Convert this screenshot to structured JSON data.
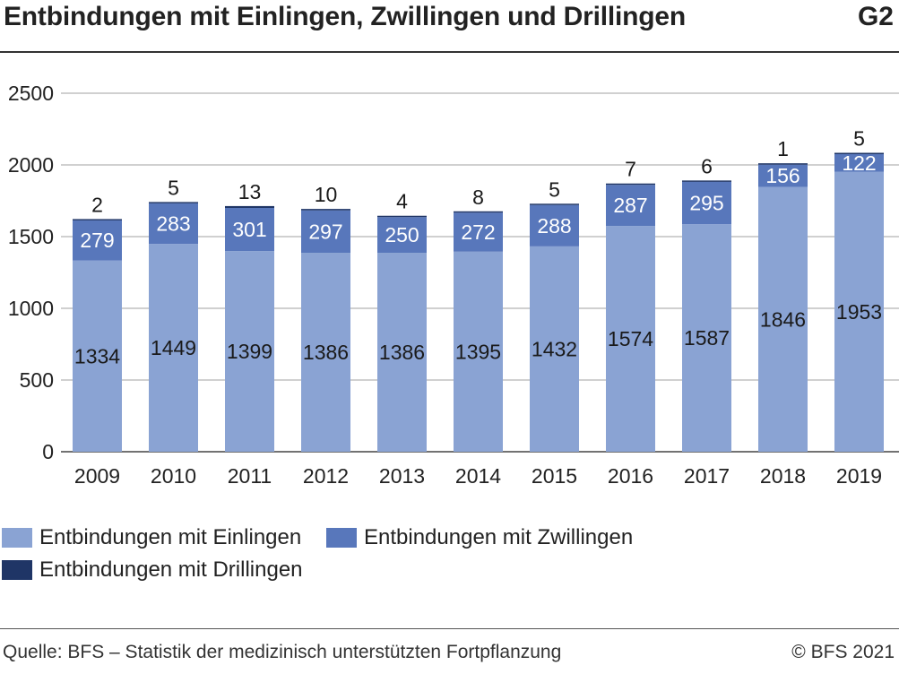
{
  "header": {
    "title": "Entbindungen mit Einlingen, Zwillingen und Drillingen",
    "code": "G2"
  },
  "footer": {
    "source": "Quelle: BFS – Statistik der medizinisch unterstützten Fortpflanzung",
    "copyright": "© BFS 2021"
  },
  "chart_data": {
    "type": "bar",
    "stacked": true,
    "categories": [
      "2009",
      "2010",
      "2011",
      "2012",
      "2013",
      "2014",
      "2015",
      "2016",
      "2017",
      "2018",
      "2019"
    ],
    "series": [
      {
        "name": "Entbindungen mit Einlingen",
        "color": "#8aa3d3",
        "label_color": "#1a1a1a",
        "values": [
          1334,
          1449,
          1399,
          1386,
          1386,
          1395,
          1432,
          1574,
          1587,
          1846,
          1953
        ]
      },
      {
        "name": "Entbindungen mit Zwillingen",
        "color": "#5877bb",
        "label_color": "#ffffff",
        "values": [
          279,
          283,
          301,
          297,
          250,
          272,
          288,
          287,
          295,
          156,
          122
        ]
      },
      {
        "name": "Entbindungen mit Drillingen",
        "color": "#1f3566",
        "label_color": "#1a1a1a",
        "values": [
          2,
          5,
          13,
          10,
          4,
          8,
          5,
          7,
          6,
          1,
          5
        ]
      }
    ],
    "ylim": [
      0,
      2500
    ],
    "yticks": [
      0,
      500,
      1000,
      1500,
      2000,
      2500
    ],
    "grid": true,
    "legend_position": "bottom"
  }
}
